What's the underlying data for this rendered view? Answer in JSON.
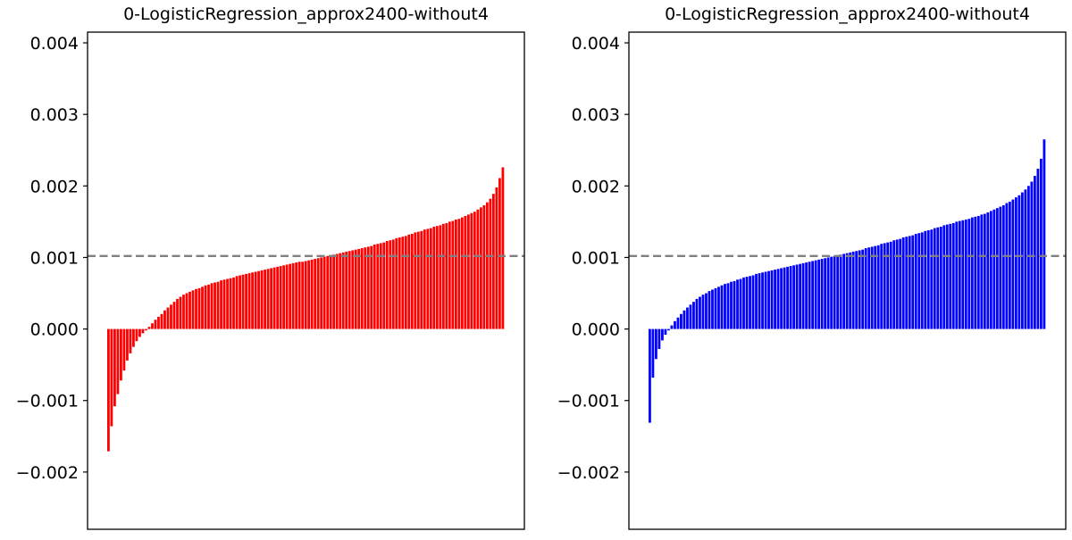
{
  "chart_data": [
    {
      "type": "bar",
      "title": "0-LogisticRegression_approx2400-without4",
      "xlabel": "",
      "ylabel": "",
      "ylim": [
        -0.0028,
        0.00415
      ],
      "yticks": [
        {
          "value": 0.004,
          "label": "0.004"
        },
        {
          "value": 0.003,
          "label": "0.003"
        },
        {
          "value": 0.002,
          "label": "0.002"
        },
        {
          "value": 0.001,
          "label": "0.001"
        },
        {
          "value": 0.0,
          "label": "0.000"
        },
        {
          "value": -0.001,
          "label": "−0.001"
        },
        {
          "value": -0.002,
          "label": "−0.002"
        }
      ],
      "reference_line": 0.00102,
      "color": "#ff0000",
      "reference_line_color": "#808080",
      "grid": false,
      "values": [
        -0.00171,
        -0.00136,
        -0.00108,
        -0.00091,
        -0.00072,
        -0.00058,
        -0.00044,
        -0.00034,
        -0.00025,
        -0.00017,
        -0.00011,
        -6e-05,
        -2e-05,
        3e-05,
        8e-05,
        0.00013,
        0.00017,
        0.00021,
        0.00026,
        0.0003,
        0.00034,
        0.00038,
        0.00042,
        0.00045,
        0.00048,
        0.0005,
        0.00052,
        0.00054,
        0.00056,
        0.00057,
        0.00059,
        0.00061,
        0.00062,
        0.00064,
        0.00065,
        0.00066,
        0.00068,
        0.00069,
        0.0007,
        0.00071,
        0.00072,
        0.00074,
        0.00075,
        0.00076,
        0.00077,
        0.00078,
        0.00079,
        0.0008,
        0.00081,
        0.00082,
        0.00083,
        0.00084,
        0.00085,
        0.00086,
        0.00087,
        0.00088,
        0.00089,
        0.0009,
        0.00091,
        0.00092,
        0.00093,
        0.00094,
        0.00094,
        0.00095,
        0.00096,
        0.00097,
        0.00098,
        0.00099,
        0.001,
        0.00101,
        0.00102,
        0.00103,
        0.00104,
        0.00105,
        0.00106,
        0.00107,
        0.00108,
        0.00109,
        0.0011,
        0.00111,
        0.00112,
        0.00113,
        0.00114,
        0.00115,
        0.00116,
        0.00118,
        0.00119,
        0.0012,
        0.00121,
        0.00123,
        0.00124,
        0.00125,
        0.00127,
        0.00128,
        0.00129,
        0.0013,
        0.00132,
        0.00133,
        0.00135,
        0.00136,
        0.00137,
        0.00139,
        0.0014,
        0.00141,
        0.00143,
        0.00144,
        0.00145,
        0.00147,
        0.00148,
        0.0015,
        0.00151,
        0.00153,
        0.00154,
        0.00156,
        0.00158,
        0.0016,
        0.00162,
        0.00164,
        0.00167,
        0.0017,
        0.00173,
        0.00177,
        0.00182,
        0.00189,
        0.00198,
        0.00211,
        0.00226
      ]
    },
    {
      "type": "bar",
      "title": "0-LogisticRegression_approx2400-without4",
      "xlabel": "",
      "ylabel": "",
      "ylim": [
        -0.0028,
        0.00415
      ],
      "yticks": [
        {
          "value": 0.004,
          "label": "0.004"
        },
        {
          "value": 0.003,
          "label": "0.003"
        },
        {
          "value": 0.002,
          "label": "0.002"
        },
        {
          "value": 0.001,
          "label": "0.001"
        },
        {
          "value": 0.0,
          "label": "0.000"
        },
        {
          "value": -0.001,
          "label": "−0.001"
        },
        {
          "value": -0.002,
          "label": "−0.002"
        }
      ],
      "reference_line": 0.00102,
      "color": "#0000ff",
      "reference_line_color": "#808080",
      "grid": false,
      "values": [
        -0.00131,
        -0.00068,
        -0.00042,
        -0.00028,
        -0.00016,
        -8e-05,
        -2e-05,
        5e-05,
        0.00011,
        0.00016,
        0.00021,
        0.00026,
        0.0003,
        0.00034,
        0.00038,
        0.00042,
        0.00045,
        0.00048,
        0.0005,
        0.00053,
        0.00055,
        0.00057,
        0.00059,
        0.00061,
        0.00063,
        0.00064,
        0.00066,
        0.00067,
        0.00069,
        0.0007,
        0.00072,
        0.00073,
        0.00074,
        0.00075,
        0.00077,
        0.00078,
        0.00079,
        0.0008,
        0.00081,
        0.00082,
        0.00083,
        0.00084,
        0.00085,
        0.00086,
        0.00087,
        0.00088,
        0.00089,
        0.0009,
        0.00091,
        0.00092,
        0.00093,
        0.00094,
        0.00095,
        0.00096,
        0.00097,
        0.00098,
        0.00099,
        0.001,
        0.00101,
        0.00102,
        0.00103,
        0.00104,
        0.00105,
        0.00106,
        0.00107,
        0.00108,
        0.00109,
        0.0011,
        0.00111,
        0.00113,
        0.00114,
        0.00115,
        0.00116,
        0.00117,
        0.00119,
        0.0012,
        0.00121,
        0.00122,
        0.00124,
        0.00125,
        0.00126,
        0.00128,
        0.00129,
        0.0013,
        0.00131,
        0.00133,
        0.00134,
        0.00135,
        0.00137,
        0.00138,
        0.00139,
        0.00141,
        0.00142,
        0.00143,
        0.00145,
        0.00146,
        0.00147,
        0.00148,
        0.0015,
        0.00151,
        0.00152,
        0.00153,
        0.00154,
        0.00156,
        0.00157,
        0.00158,
        0.0016,
        0.00161,
        0.00163,
        0.00165,
        0.00167,
        0.00169,
        0.00171,
        0.00173,
        0.00176,
        0.00178,
        0.00181,
        0.00184,
        0.00187,
        0.00191,
        0.00195,
        0.002,
        0.00206,
        0.00214,
        0.00224,
        0.00238,
        0.00265
      ]
    }
  ]
}
